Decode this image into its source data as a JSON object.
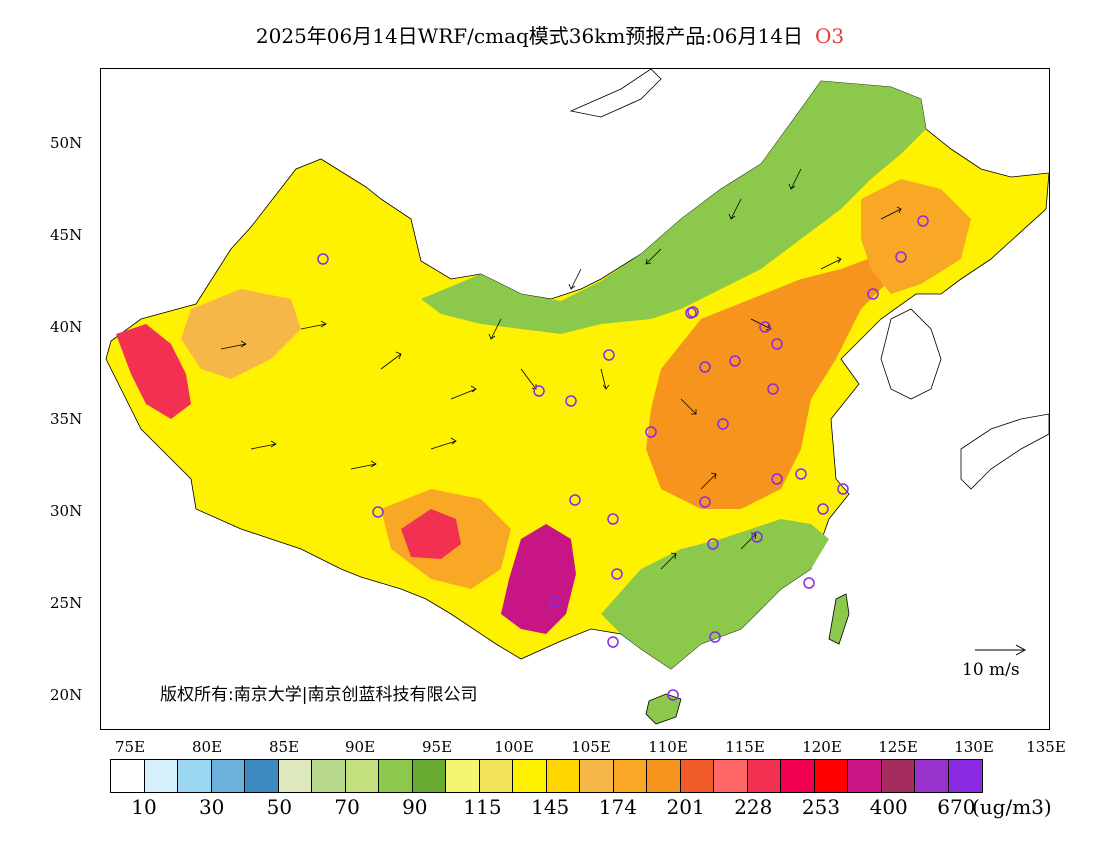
{
  "title": {
    "main": "2025年06月14日WRF/cmaq模式36km预报产品:06月14日",
    "species": "O3",
    "species_color": "#e8383d"
  },
  "map": {
    "lat_labels": [
      "50N",
      "45N",
      "40N",
      "35N",
      "30N",
      "25N",
      "20N"
    ],
    "lon_labels": [
      "75E",
      "80E",
      "85E",
      "90E",
      "95E",
      "100E",
      "105E",
      "110E",
      "115E",
      "120E",
      "125E",
      "130E",
      "135E"
    ],
    "copyright": "版权所有:南京大学|南京创蓝科技有限公司",
    "vector_reference": "10 m/s"
  },
  "colorbar": {
    "colors": [
      "#ffffff",
      "#d6f0fb",
      "#9bd7f2",
      "#6cb0dc",
      "#3d8bc2",
      "#dde9bd",
      "#b8d88d",
      "#c5e17f",
      "#8cc84b",
      "#6aab34",
      "#f2f76f",
      "#f1e25c",
      "#fff200",
      "#ffd700",
      "#f7b648",
      "#f9a825",
      "#f7941d",
      "#f15a29",
      "#fe6868",
      "#f23052",
      "#f0004f",
      "#ff0000",
      "#c71585",
      "#a62b5e",
      "#9932cc",
      "#8a2be2"
    ],
    "labels": [
      "10",
      "30",
      "50",
      "70",
      "90",
      "115",
      "145",
      "174",
      "201",
      "228",
      "253",
      "400",
      "670"
    ],
    "unit": "(ug/m3)"
  },
  "legend_colors": {
    "low_green": "#8cc84b",
    "yellow": "#fff200",
    "orange": "#f7941d",
    "high_red": "#f23052",
    "extreme_purple": "#c71585"
  }
}
